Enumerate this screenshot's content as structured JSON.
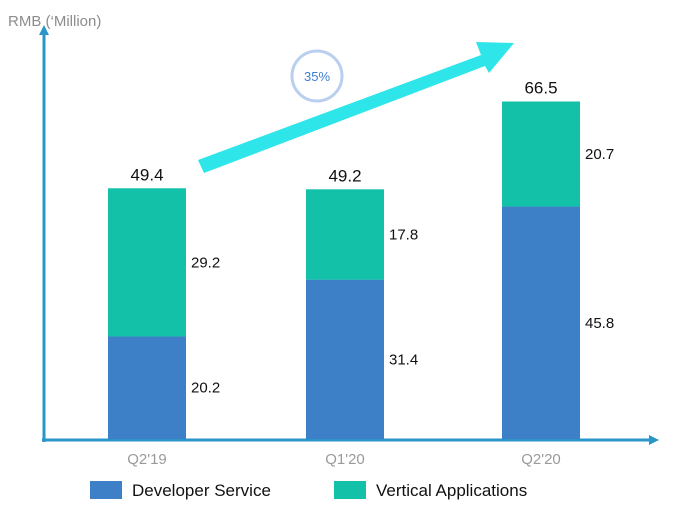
{
  "chart_data": {
    "type": "bar",
    "stacked": true,
    "ylabel": "RMB (‘Million)",
    "categories": [
      "Q2'19",
      "Q1'20",
      "Q2'20"
    ],
    "series": [
      {
        "name": "Developer Service",
        "values": [
          20.2,
          31.4,
          45.8
        ],
        "color": "#3e80c8"
      },
      {
        "name": "Vertical Applications",
        "values": [
          29.2,
          17.8,
          20.7
        ],
        "color": "#12c1a8"
      }
    ],
    "totals": [
      49.4,
      49.2,
      66.5
    ],
    "ylim": [
      0,
      70
    ],
    "grid": false,
    "legend": "bottom",
    "annotations": [
      {
        "type": "growth-arrow",
        "text": "35%",
        "color": "#2ee5ea"
      }
    ],
    "axis_color": "#2a95c9"
  }
}
